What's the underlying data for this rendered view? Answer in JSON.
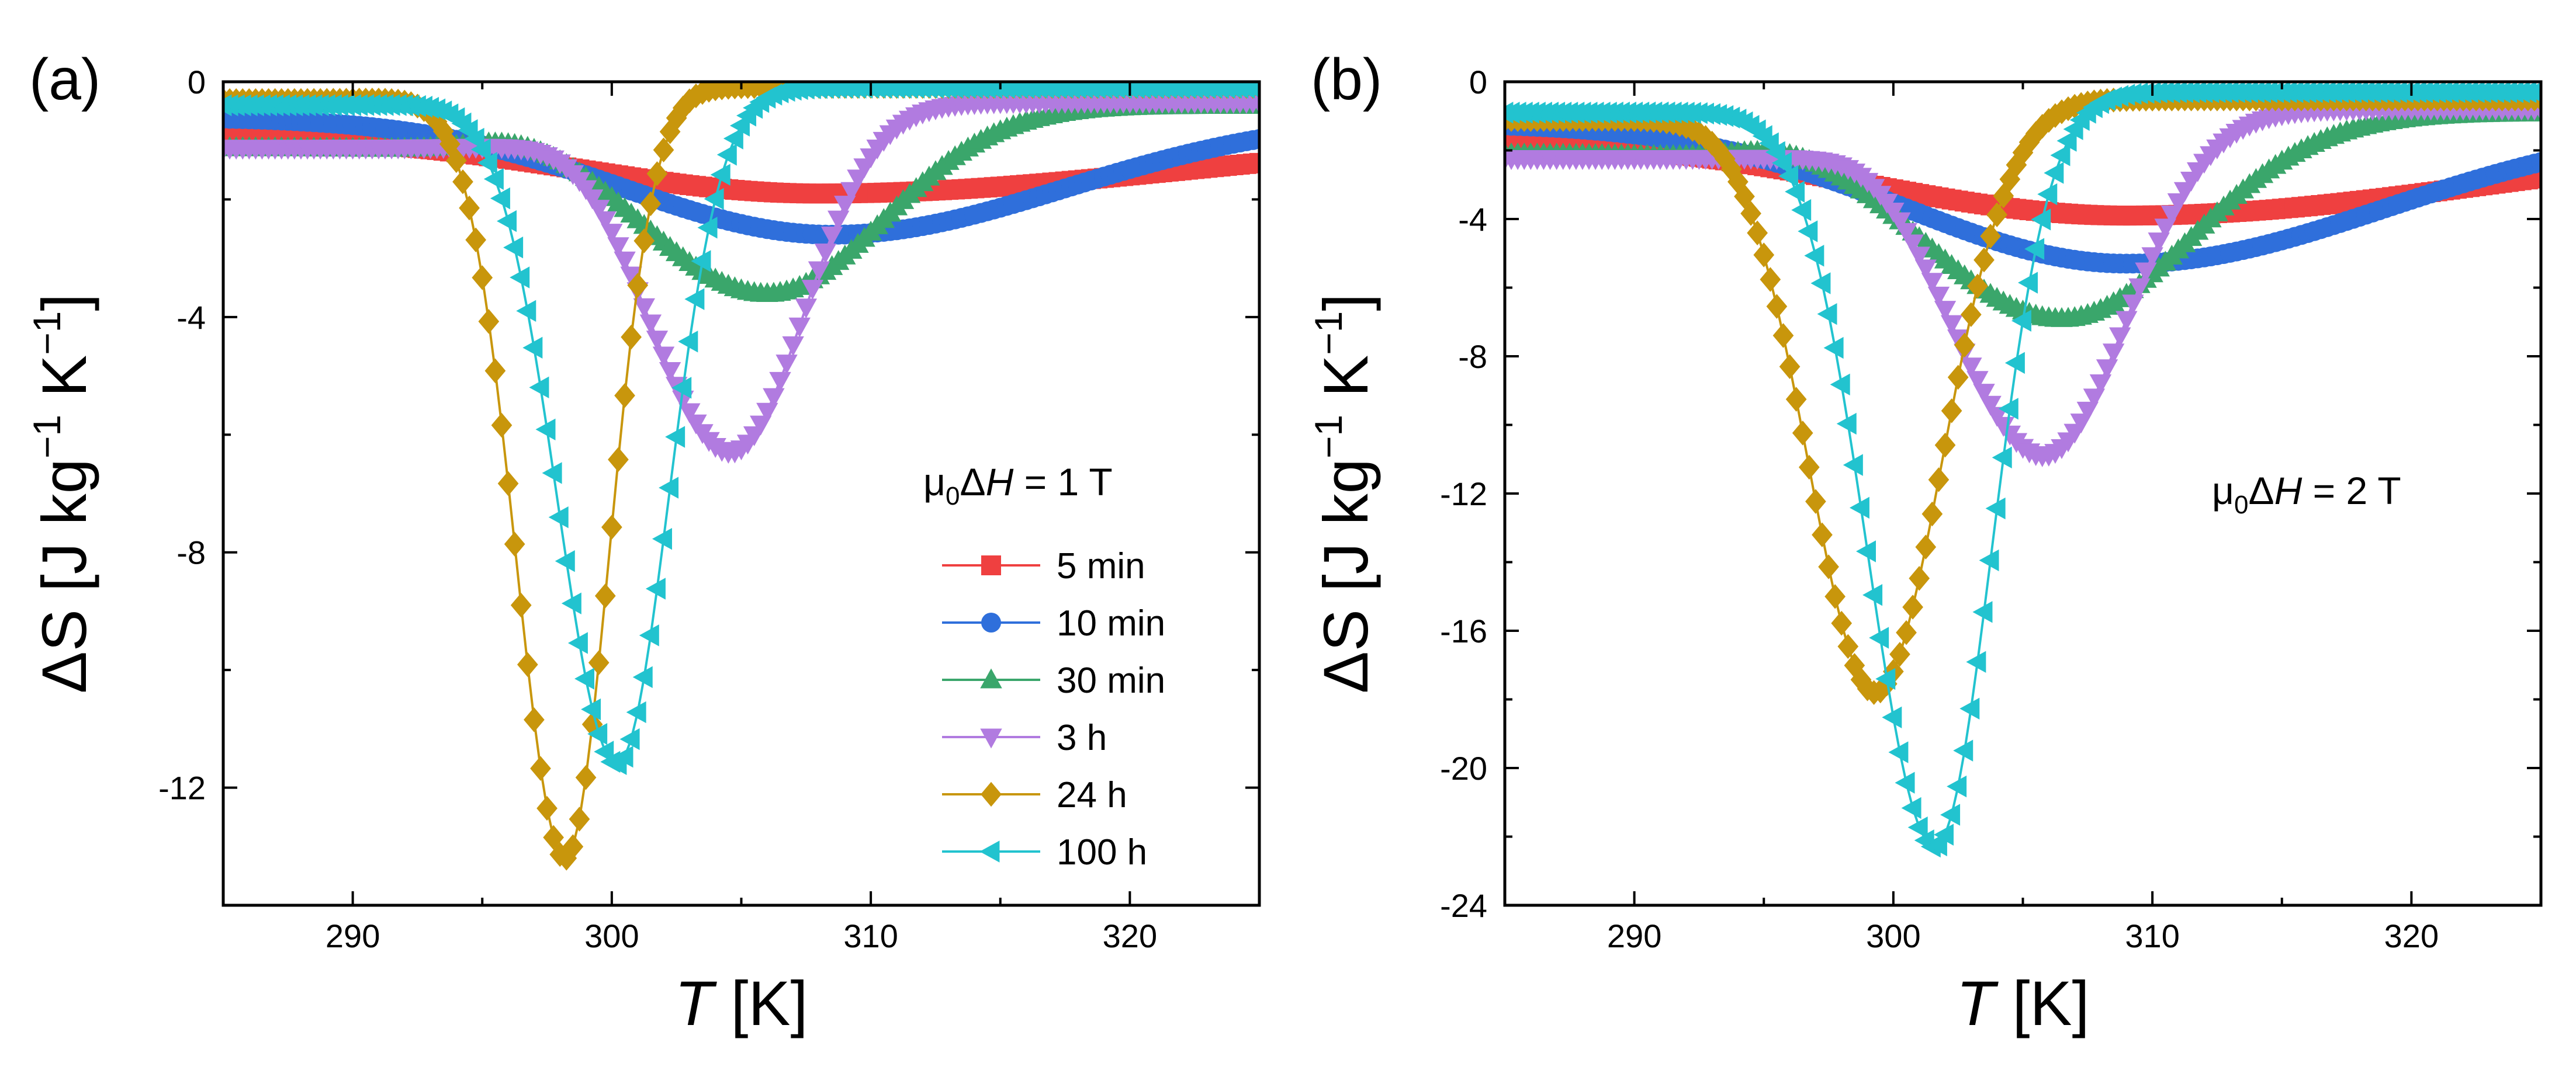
{
  "chart_data": [
    {
      "type": "scatter",
      "panel_label": "(a)",
      "xlabel_var": "T",
      "xlabel_unit": " [K]",
      "ylabel": "ΔS [J kg",
      "ylabel_exp": "−1",
      "ylabel_mid": " K",
      "ylabel_exp2": "−1",
      "ylabel_end": "]",
      "xlim": [
        285,
        325
      ],
      "ylim": [
        -14,
        0
      ],
      "xticks": [
        290,
        300,
        310,
        320
      ],
      "yticks": [
        0,
        -4,
        -8,
        -12
      ],
      "tick_labels_x": [
        "290",
        "300",
        "310",
        "320"
      ],
      "tick_labels_y": [
        "0",
        "-4",
        "-8",
        "-12"
      ],
      "field": {
        "prefix": "μ",
        "sub": "0",
        "mid": "Δ",
        "var": "H",
        "suffix": " = 1 T"
      },
      "legend_position": "right",
      "series": [
        {
          "name": "5 min",
          "color": "#ef4040",
          "marker": "square",
          "center": 308,
          "min": -1.9,
          "wl": 9,
          "wr": 14,
          "base": 0.9,
          "plateau": 0
        },
        {
          "name": "10 min",
          "color": "#2f6fdb",
          "marker": "circle",
          "center": 308.5,
          "min": -2.6,
          "wl": 8,
          "wr": 9,
          "base": 0.6,
          "plateau": 0
        },
        {
          "name": "30 min",
          "color": "#3aa66b",
          "marker": "triangle-up",
          "center": 306,
          "min": -3.6,
          "wl": 5,
          "wr": 4.5,
          "base": 0.4,
          "plateau": 1.2
        },
        {
          "name": "3 h",
          "color": "#b17be0",
          "marker": "triangle-down",
          "center": 304.6,
          "min": -6.3,
          "wl": 3.2,
          "wr": 2.8,
          "base": 0.35,
          "plateau": 1.3
        },
        {
          "name": "24 h",
          "color": "#c8960c",
          "marker": "diamond",
          "center": 298.2,
          "min": -13.2,
          "wl": 1.9,
          "wr": 1.7,
          "base": 0.08,
          "plateau": 0.4
        },
        {
          "name": "100 h",
          "color": "#22c3cf",
          "marker": "triangle-left",
          "center": 300.2,
          "min": -11.6,
          "wl": 2.3,
          "wr": 2.0,
          "base": 0.1,
          "plateau": 0.5
        }
      ]
    },
    {
      "type": "scatter",
      "panel_label": "(b)",
      "xlabel_var": "T",
      "xlabel_unit": " [K]",
      "ylabel": "ΔS [J kg",
      "ylabel_exp": "−1",
      "ylabel_mid": " K",
      "ylabel_exp2": "−1",
      "ylabel_end": "]",
      "xlim": [
        285,
        325
      ],
      "ylim": [
        -24,
        0
      ],
      "xticks": [
        290,
        300,
        310,
        320
      ],
      "yticks": [
        0,
        -4,
        -8,
        -12,
        -16,
        -20,
        -24
      ],
      "tick_labels_x": [
        "290",
        "300",
        "310",
        "320"
      ],
      "tick_labels_y": [
        "0",
        "-4",
        "-8",
        "-12",
        "-16",
        "-20",
        "-24"
      ],
      "field": {
        "prefix": "μ",
        "sub": "0",
        "mid": "Δ",
        "var": "H",
        "suffix": " = 2 T"
      },
      "series": [
        {
          "name": "5 min",
          "color": "#ef4040",
          "marker": "square",
          "center": 309,
          "min": -3.9,
          "wl": 10,
          "wr": 14,
          "base": 1.6,
          "plateau": 0
        },
        {
          "name": "10 min",
          "color": "#2f6fdb",
          "marker": "circle",
          "center": 309,
          "min": -5.3,
          "wl": 8.5,
          "wr": 10,
          "base": 1.2,
          "plateau": 0
        },
        {
          "name": "30 min",
          "color": "#3aa66b",
          "marker": "triangle-up",
          "center": 306.5,
          "min": -6.9,
          "wl": 5.5,
          "wr": 5,
          "base": 0.9,
          "plateau": 2.0
        },
        {
          "name": "3 h",
          "color": "#b17be0",
          "marker": "triangle-down",
          "center": 305.8,
          "min": -10.9,
          "wl": 3.6,
          "wr": 3.2,
          "base": 0.8,
          "plateau": 2.4
        },
        {
          "name": "24 h",
          "color": "#c8960c",
          "marker": "diamond",
          "center": 299.3,
          "min": -17.8,
          "wl": 2.6,
          "wr": 2.6,
          "base": 0.5,
          "plateau": 1.0
        },
        {
          "name": "100 h",
          "color": "#22c3cf",
          "marker": "triangle-left",
          "center": 301.6,
          "min": -22.3,
          "wl": 2.6,
          "wr": 2.2,
          "base": 0.3,
          "plateau": 1.0
        }
      ]
    }
  ]
}
